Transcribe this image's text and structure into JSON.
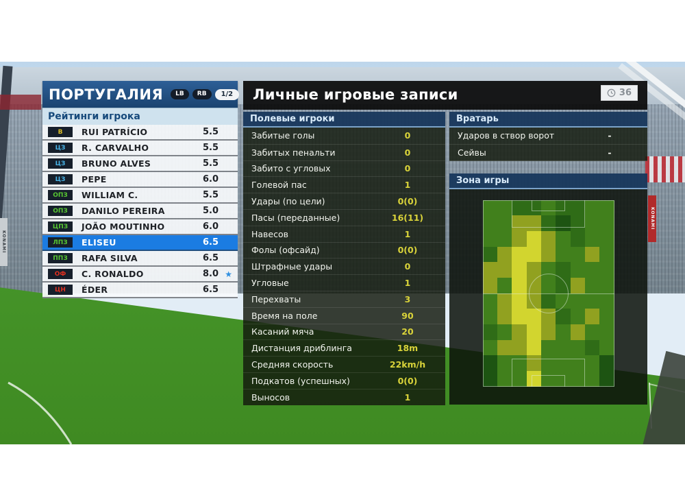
{
  "background": {
    "ad_text": "KONAMI"
  },
  "left_panel": {
    "title": "ПОРТУГАЛИЯ",
    "button_badges": [
      "LB",
      "RB"
    ],
    "page_indicator": "1/2",
    "subtitle": "Рейтинги игрока",
    "players": [
      {
        "pos": "В",
        "pos_color": "#d8bc28",
        "name": "RUI PATRÍCIO",
        "rating": "5.5",
        "selected": false,
        "star": false
      },
      {
        "pos": "ЦЗ",
        "pos_color": "#49b4e8",
        "name": "R. CARVALHO",
        "rating": "5.5",
        "selected": false,
        "star": false
      },
      {
        "pos": "ЦЗ",
        "pos_color": "#49b4e8",
        "name": "BRUNO ALVES",
        "rating": "5.5",
        "selected": false,
        "star": false
      },
      {
        "pos": "ЦЗ",
        "pos_color": "#49b4e8",
        "name": "PEPE",
        "rating": "6.0",
        "selected": false,
        "star": false
      },
      {
        "pos": "ОПЗ",
        "pos_color": "#58c832",
        "name": "WILLIAM C.",
        "rating": "5.5",
        "selected": false,
        "star": false
      },
      {
        "pos": "ОПЗ",
        "pos_color": "#58c832",
        "name": "DANILO PEREIRA",
        "rating": "5.0",
        "selected": false,
        "star": false
      },
      {
        "pos": "ЦПЗ",
        "pos_color": "#58c832",
        "name": "JOÃO MOUTINHO",
        "rating": "6.0",
        "selected": false,
        "star": false
      },
      {
        "pos": "ЛПЗ",
        "pos_color": "#58c832",
        "name": "ELISEU",
        "rating": "6.5",
        "selected": true,
        "star": false
      },
      {
        "pos": "ППЗ",
        "pos_color": "#58c832",
        "name": "RAFA SILVA",
        "rating": "6.5",
        "selected": false,
        "star": false
      },
      {
        "pos": "ОФ",
        "pos_color": "#e03020",
        "name": "C. RONALDO",
        "rating": "8.0",
        "selected": false,
        "star": true
      },
      {
        "pos": "ЦН",
        "pos_color": "#e03020",
        "name": "ÉDER",
        "rating": "6.5",
        "selected": false,
        "star": false
      }
    ]
  },
  "right_panel": {
    "title": "Личные игровые записи",
    "clock_value": "36",
    "field_players": {
      "header": "Полевые игроки",
      "stats": [
        {
          "label": "Забитые голы",
          "value": "0"
        },
        {
          "label": "Забитых пенальти",
          "value": "0"
        },
        {
          "label": "Забито с угловых",
          "value": "0"
        },
        {
          "label": "Голевой пас",
          "value": "1"
        },
        {
          "label": "Удары (по цели)",
          "value": "0(0)"
        },
        {
          "label": "Пасы (переданные)",
          "value": "16(11)"
        },
        {
          "label": "Навесов",
          "value": "1"
        },
        {
          "label": "Фолы (офсайд)",
          "value": "0(0)"
        },
        {
          "label": "Штрафные удары",
          "value": "0"
        },
        {
          "label": "Угловые",
          "value": "1"
        },
        {
          "label": "Перехваты",
          "value": "3"
        },
        {
          "label": "Время на поле",
          "value": "90"
        },
        {
          "label": "Касаний мяча",
          "value": "20"
        },
        {
          "label": "Дистанция дриблинга",
          "value": "18m"
        },
        {
          "label": "Средняя скорость",
          "value": "22km/h"
        },
        {
          "label": "Подкатов (успешных)",
          "value": "0(0)"
        },
        {
          "label": "Выносов",
          "value": "1"
        }
      ]
    },
    "goalkeeper": {
      "header": "Вратарь",
      "stats": [
        {
          "label": "Ударов в створ ворот",
          "value": "-"
        },
        {
          "label": "Сейвы",
          "value": "-"
        }
      ]
    },
    "zone": {
      "header": "Зона игры"
    }
  },
  "chart_data": {
    "type": "heatmap",
    "title": "Зона игры",
    "rows": 12,
    "cols": 9,
    "legend": "intensity levels 0 (low) – 4 (high), activity concentrated on left flank",
    "palette": [
      "#1d5412",
      "#2f6c17",
      "#41801c",
      "#91a120",
      "#d2d52f"
    ],
    "values": [
      [
        2,
        2,
        1,
        1,
        2,
        1,
        1,
        2,
        2
      ],
      [
        2,
        2,
        3,
        3,
        1,
        0,
        1,
        2,
        2
      ],
      [
        2,
        2,
        3,
        4,
        3,
        2,
        1,
        2,
        2
      ],
      [
        1,
        3,
        4,
        4,
        3,
        2,
        2,
        3,
        2
      ],
      [
        3,
        3,
        4,
        3,
        2,
        1,
        2,
        2,
        2
      ],
      [
        3,
        2,
        4,
        3,
        2,
        1,
        3,
        2,
        2
      ],
      [
        2,
        3,
        4,
        3,
        1,
        2,
        2,
        2,
        2
      ],
      [
        2,
        3,
        4,
        4,
        3,
        1,
        2,
        3,
        2
      ],
      [
        1,
        2,
        3,
        4,
        3,
        2,
        3,
        2,
        2
      ],
      [
        2,
        3,
        3,
        4,
        2,
        2,
        2,
        1,
        2
      ],
      [
        0,
        2,
        2,
        3,
        2,
        2,
        2,
        2,
        0
      ],
      [
        0,
        2,
        2,
        4,
        2,
        2,
        2,
        2,
        0
      ]
    ]
  }
}
